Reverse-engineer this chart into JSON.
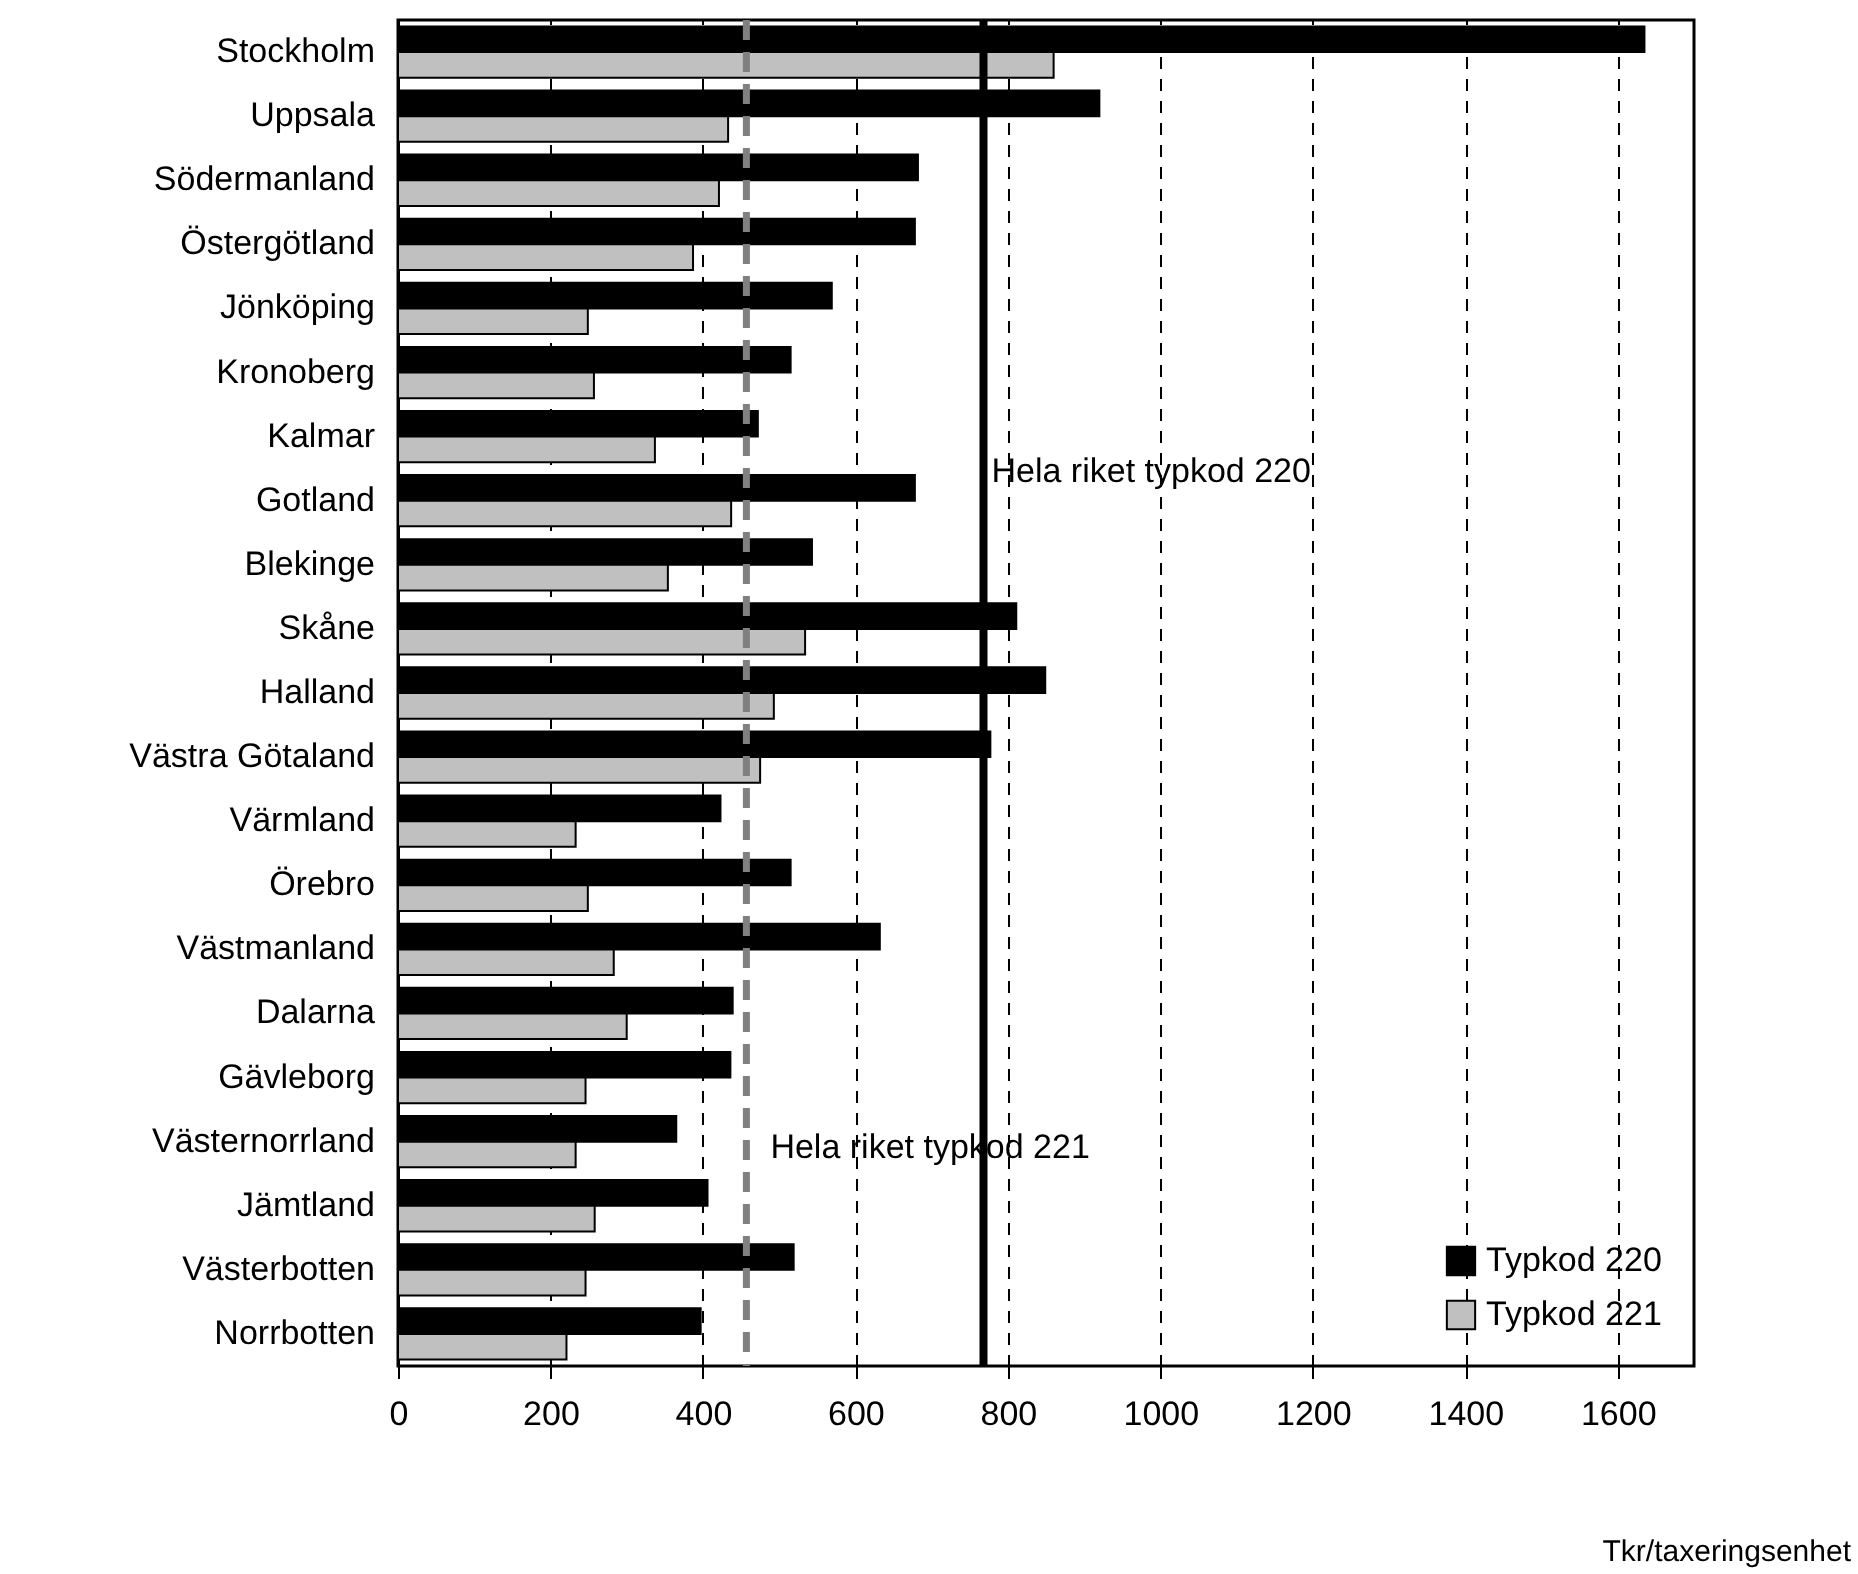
{
  "chart_data": {
    "type": "bar",
    "orientation": "horizontal",
    "xlabel": "Tkr/taxeringsenhet",
    "categories": [
      "Stockholm",
      "Uppsala",
      "Södermanland",
      "Östergötland",
      "Jönköping",
      "Kronoberg",
      "Kalmar",
      "Gotland",
      "Blekinge",
      "Skåne",
      "Halland",
      "Västra Götaland",
      "Värmland",
      "Örebro",
      "Västmanland",
      "Dalarna",
      "Gävleborg",
      "Västernorrland",
      "Jämtland",
      "Västerbotten",
      "Norrbotten"
    ],
    "series": [
      {
        "name": "Typkod 220",
        "color": "#000000",
        "values": [
          1635,
          920,
          682,
          678,
          569,
          515,
          472,
          678,
          543,
          811,
          849,
          777,
          423,
          515,
          632,
          439,
          436,
          365,
          406,
          519,
          397
        ]
      },
      {
        "name": "Typkod 221",
        "color": "#c0c0c0",
        "values": [
          860,
          433,
          421,
          387,
          249,
          257,
          337,
          437,
          354,
          534,
          493,
          475,
          233,
          249,
          283,
          300,
          246,
          233,
          258,
          246,
          221
        ]
      }
    ],
    "xlim": [
      0,
      1700
    ],
    "xticks": [
      0,
      200,
      400,
      600,
      800,
      1000,
      1200,
      1400,
      1600
    ],
    "grid": "x",
    "legend": "bottom right",
    "ref_lines": [
      {
        "axis": "x",
        "value": 768,
        "label": "Hela riket typkod 220",
        "color": "#000000",
        "line_style": "solid"
      },
      {
        "axis": "x",
        "value": 457,
        "label": "Hela riket typkod 221",
        "color": "#808080",
        "line_style": "dashed"
      }
    ]
  }
}
